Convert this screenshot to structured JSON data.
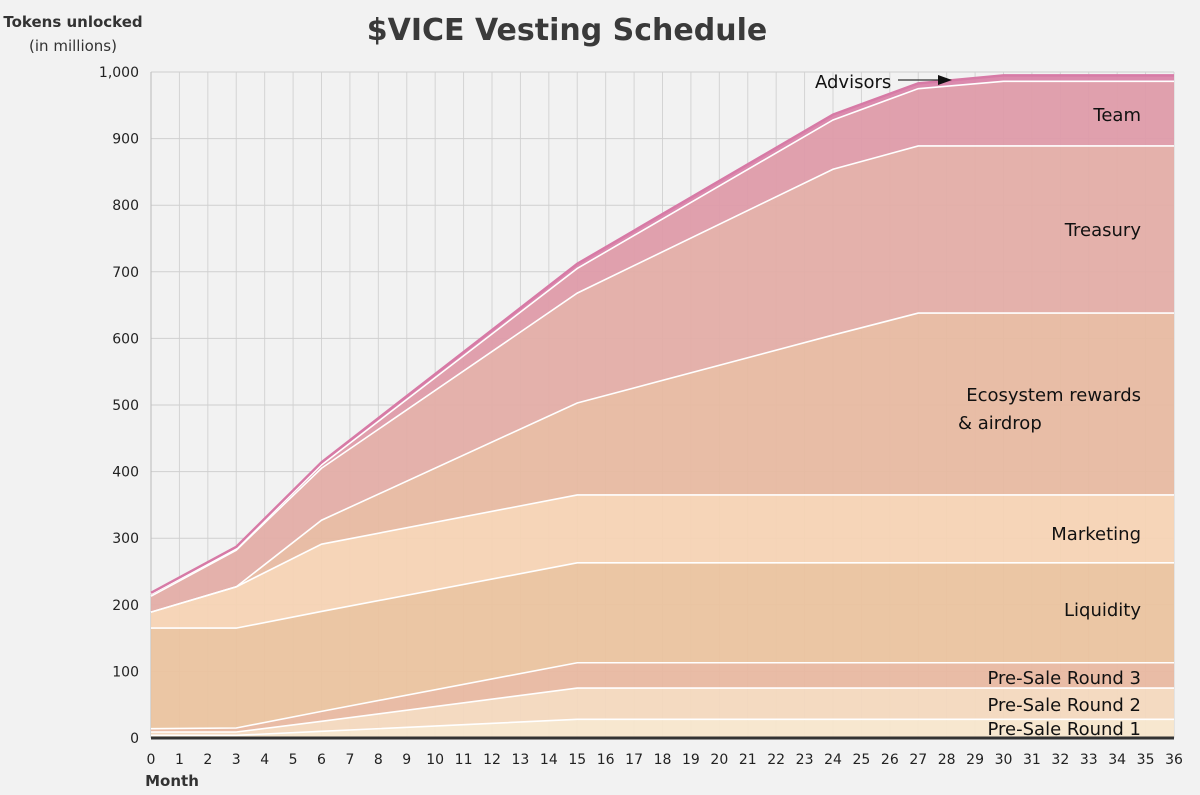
{
  "chart_data": {
    "type": "area",
    "stacked": true,
    "title": "$VICE Vesting Schedule",
    "ylabel": "Tokens unlocked",
    "ylabel_sub": "(in millions)",
    "xlabel": "Month",
    "xlim": [
      0,
      36
    ],
    "ylim": [
      0,
      1000
    ],
    "yticks": [
      0,
      100,
      200,
      300,
      400,
      500,
      600,
      700,
      800,
      900,
      1000
    ],
    "ytick_labels": [
      "0",
      "100",
      "200",
      "300",
      "400",
      "500",
      "600",
      "700",
      "800",
      "900",
      "1,000"
    ],
    "grid": true,
    "x": [
      0,
      3,
      6,
      15,
      24,
      27,
      30,
      36
    ],
    "series_cumulative_note": "values are cumulative stack tops",
    "series": [
      {
        "name": "Pre-Sale Round 1",
        "color": "#f8e6cc",
        "cumulative": [
          4,
          4,
          10,
          28,
          28,
          28,
          28,
          28
        ]
      },
      {
        "name": "Pre-Sale Round 2",
        "color": "#f4d8bd",
        "cumulative": [
          9,
          9,
          25,
          75,
          75,
          75,
          75,
          75
        ]
      },
      {
        "name": "Pre-Sale Round 3",
        "color": "#e8b8a0",
        "cumulative": [
          14,
          15,
          40,
          113,
          113,
          113,
          113,
          113
        ]
      },
      {
        "name": "Liquidity",
        "color": "#ebc39e",
        "cumulative": [
          165,
          165,
          190,
          263,
          263,
          263,
          263,
          263
        ]
      },
      {
        "name": "Marketing",
        "color": "#f6d3b4",
        "cumulative": [
          189,
          227,
          291,
          365,
          365,
          365,
          365,
          365
        ]
      },
      {
        "name": "Ecosystem rewards & airdrop",
        "label_lines": [
          "Ecosystem rewards",
          "& airdrop"
        ],
        "color": "#e7b9a0",
        "cumulative": [
          189,
          227,
          327,
          503,
          605,
          638,
          638,
          638
        ]
      },
      {
        "name": "Treasury",
        "color": "#e3aca6",
        "cumulative": [
          213,
          282,
          405,
          668,
          854,
          889,
          889,
          889
        ]
      },
      {
        "name": "Team",
        "color": "#df9aa8",
        "cumulative": [
          216,
          284,
          410,
          705,
          928,
          975,
          986,
          986
        ]
      },
      {
        "name": "Advisors",
        "color": "#d982a8",
        "cumulative": [
          218,
          287,
          414,
          712,
          936,
          983,
          995,
          995
        ]
      }
    ],
    "annotations": [
      {
        "text": "Advisors",
        "arrow_to_series": "Advisors"
      }
    ]
  }
}
